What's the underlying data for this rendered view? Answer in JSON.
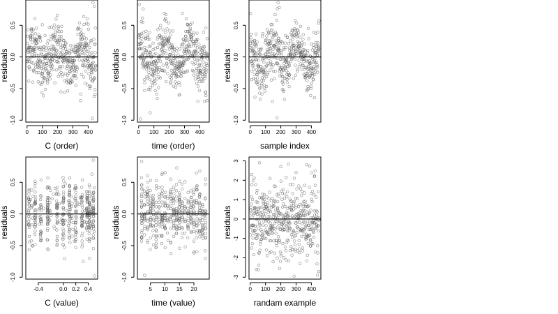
{
  "chart_data": [
    {
      "type": "scatter",
      "xlabel": "C (order)",
      "ylabel": "residuals",
      "xlim": [
        -8,
        462
      ],
      "ylim": [
        -1.03,
        0.9
      ],
      "xticks": [
        0,
        100,
        200,
        300,
        400
      ],
      "xtick_labels": [
        "0",
        "100",
        "200",
        "300",
        "400"
      ],
      "yticks": [
        -1.0,
        -0.5,
        0.0,
        0.5
      ],
      "ytick_labels": [
        "-1.0",
        "-0.5",
        "0.0",
        "0.5"
      ],
      "hline": 0,
      "grid": false,
      "n_points": 450,
      "x_range": [
        1,
        450
      ],
      "y_sample": [
        [
          8,
          0.43
        ],
        [
          25,
          0.31
        ],
        [
          48,
          0.05
        ],
        [
          60,
          0.22
        ],
        [
          85,
          0.12
        ],
        [
          100,
          0.51
        ],
        [
          118,
          0.34
        ],
        [
          135,
          -0.26
        ],
        [
          160,
          -0.18
        ],
        [
          182,
          -0.41
        ],
        [
          205,
          -0.31
        ],
        [
          222,
          -0.55
        ],
        [
          240,
          0.26
        ],
        [
          262,
          -0.15
        ],
        [
          285,
          0.18
        ],
        [
          305,
          -0.29
        ],
        [
          330,
          0.44
        ],
        [
          350,
          -0.69
        ],
        [
          380,
          0.15
        ],
        [
          400,
          0.52
        ],
        [
          418,
          0.26
        ],
        [
          428,
          -0.97
        ],
        [
          432,
          0.86
        ],
        [
          440,
          0.8
        ],
        [
          445,
          -0.59
        ]
      ]
    },
    {
      "type": "scatter",
      "xlabel": "time (order)",
      "ylabel": "residuals",
      "xlim": [
        -8,
        462
      ],
      "ylim": [
        -1.03,
        0.9
      ],
      "xticks": [
        0,
        100,
        200,
        300,
        400
      ],
      "xtick_labels": [
        "0",
        "100",
        "200",
        "300",
        "400"
      ],
      "yticks": [
        -1.0,
        -0.5,
        0.0,
        0.5
      ],
      "ytick_labels": [
        "-1.0",
        "-0.5",
        "0.0",
        "0.5"
      ],
      "hline": 0,
      "grid": false,
      "n_points": 450,
      "x_range": [
        1,
        450
      ],
      "y_sample": [
        [
          5,
          0.83
        ],
        [
          30,
          0.76
        ],
        [
          12,
          -0.98
        ],
        [
          40,
          -0.41
        ],
        [
          60,
          0.31
        ],
        [
          75,
          -0.52
        ],
        [
          95,
          0.22
        ],
        [
          120,
          -0.35
        ],
        [
          140,
          0.46
        ],
        [
          160,
          -0.13
        ],
        [
          185,
          0.27
        ],
        [
          205,
          -0.32
        ],
        [
          225,
          0.41
        ],
        [
          250,
          0.14
        ],
        [
          270,
          -0.44
        ],
        [
          295,
          0.27
        ],
        [
          320,
          -0.22
        ],
        [
          345,
          0.36
        ],
        [
          370,
          -0.35
        ],
        [
          395,
          0.2
        ],
        [
          415,
          -0.39
        ],
        [
          430,
          -0.7
        ],
        [
          440,
          0.46
        ],
        [
          448,
          -0.69
        ]
      ]
    },
    {
      "type": "scatter",
      "xlabel": "sample index",
      "ylabel": "residuals",
      "xlim": [
        -8,
        462
      ],
      "ylim": [
        -1.03,
        0.9
      ],
      "xticks": [
        0,
        100,
        200,
        300,
        400
      ],
      "xtick_labels": [
        "0",
        "100",
        "200",
        "300",
        "400"
      ],
      "yticks": [
        -1.0,
        -0.5,
        0.0,
        0.5
      ],
      "ytick_labels": [
        "-1.0",
        "-0.5",
        "0.0",
        "0.5"
      ],
      "hline": 0,
      "grid": false,
      "n_points": 450,
      "x_range": [
        1,
        450
      ],
      "y_sample": [
        [
          10,
          -0.36
        ],
        [
          30,
          0.19
        ],
        [
          55,
          0.07
        ],
        [
          80,
          0.33
        ],
        [
          110,
          0.43
        ],
        [
          130,
          -0.21
        ],
        [
          150,
          0.12
        ],
        [
          175,
          -0.96
        ],
        [
          182,
          0.86
        ],
        [
          190,
          0.78
        ],
        [
          210,
          -0.31
        ],
        [
          230,
          0.22
        ],
        [
          255,
          -0.47
        ],
        [
          275,
          0.34
        ],
        [
          300,
          0.09
        ],
        [
          320,
          -0.15
        ],
        [
          345,
          0.28
        ],
        [
          360,
          -0.33
        ],
        [
          380,
          0.45
        ],
        [
          395,
          -0.61
        ],
        [
          415,
          0.39
        ],
        [
          430,
          -0.22
        ],
        [
          445,
          0.1
        ]
      ]
    },
    {
      "type": "scatter",
      "xlabel": "C (value)",
      "ylabel": "residuals",
      "xlim": [
        -0.6,
        0.55
      ],
      "ylim": [
        -1.03,
        0.9
      ],
      "xticks": [
        -0.4,
        0.0,
        0.2,
        0.4
      ],
      "xtick_labels": [
        "-0.4",
        "0.0",
        "0.2",
        "0.4"
      ],
      "yticks": [
        -1.0,
        -0.5,
        0.0,
        0.5
      ],
      "ytick_labels": [
        "-1.0",
        "-0.5",
        "0.0",
        "0.5"
      ],
      "hline": 0,
      "grid": false,
      "n_points": 450,
      "x_concentrations": [
        -0.55,
        -0.45,
        -0.36,
        -0.25,
        -0.1,
        0.0,
        0.1,
        0.2,
        0.3,
        0.38,
        0.42,
        0.48
      ],
      "y_sample": [
        [
          -0.55,
          0.32
        ],
        [
          -0.45,
          0.48
        ],
        [
          -0.45,
          -0.27
        ],
        [
          -0.36,
          0.13
        ],
        [
          -0.25,
          0.22
        ],
        [
          -0.1,
          -0.41
        ],
        [
          0.0,
          0.18
        ],
        [
          0.1,
          -0.25
        ],
        [
          0.2,
          0.34
        ],
        [
          0.3,
          -0.52
        ],
        [
          0.38,
          -0.4
        ],
        [
          0.42,
          -0.7
        ],
        [
          0.48,
          0.85
        ],
        [
          0.5,
          -0.98
        ],
        [
          0.46,
          0.63
        ]
      ]
    },
    {
      "type": "scatter",
      "xlabel": "time (value)",
      "ylabel": "residuals",
      "xlim": [
        0.5,
        25.3
      ],
      "ylim": [
        -1.03,
        0.9
      ],
      "xticks": [
        5,
        10,
        15,
        20
      ],
      "xtick_labels": [
        "5",
        "10",
        "15",
        "20"
      ],
      "yticks": [
        -1.0,
        -0.5,
        0.0,
        0.5
      ],
      "ytick_labels": [
        "-1.0",
        "-0.5",
        "0.0",
        "0.5"
      ],
      "hline": 0,
      "grid": false,
      "n_points": 450,
      "x_levels": [
        2,
        3,
        4,
        5,
        6,
        7,
        8,
        9,
        10,
        11,
        12,
        13,
        14,
        15,
        16,
        17,
        18,
        19,
        20,
        21,
        22,
        23,
        24
      ],
      "y_sample": [
        [
          2,
          0.83
        ],
        [
          3,
          -0.97
        ],
        [
          4,
          0.27
        ],
        [
          5,
          -0.38
        ],
        [
          6,
          0.23
        ],
        [
          7,
          -0.52
        ],
        [
          8,
          0.31
        ],
        [
          10,
          -0.22
        ],
        [
          12,
          0.55
        ],
        [
          12,
          -0.46
        ],
        [
          14,
          0.27
        ],
        [
          16,
          -0.23
        ],
        [
          18,
          0.34
        ],
        [
          20,
          -0.43
        ],
        [
          22,
          0.16
        ],
        [
          24,
          -0.7
        ],
        [
          24,
          0.47
        ],
        [
          24,
          0.55
        ]
      ]
    },
    {
      "type": "scatter",
      "xlabel": "randam example",
      "ylabel": "residuals",
      "xlim": [
        -8,
        462
      ],
      "ylim": [
        -3.1,
        3.2
      ],
      "xticks": [
        0,
        100,
        200,
        300,
        400
      ],
      "xtick_labels": [
        "0",
        "100",
        "200",
        "300",
        "400"
      ],
      "yticks": [
        -3,
        -2,
        -1,
        0,
        1,
        2,
        3
      ],
      "ytick_labels": [
        "-3",
        "-2",
        "-1",
        "0",
        "1",
        "2",
        "3"
      ],
      "hline": 0,
      "grid": false,
      "n_points": 450,
      "x_range": [
        1,
        450
      ],
      "y_sample": [
        [
          10,
          2.3
        ],
        [
          40,
          -2.6
        ],
        [
          60,
          2.9
        ],
        [
          85,
          1.1
        ],
        [
          105,
          -1.6
        ],
        [
          130,
          2.1
        ],
        [
          150,
          -2.2
        ],
        [
          180,
          0.6
        ],
        [
          200,
          2.7
        ],
        [
          220,
          -2.0
        ],
        [
          245,
          1.4
        ],
        [
          270,
          -0.8
        ],
        [
          300,
          2.4
        ],
        [
          325,
          -2.3
        ],
        [
          350,
          0.9
        ],
        [
          370,
          2.8
        ],
        [
          395,
          -1.4
        ],
        [
          420,
          2.2
        ],
        [
          440,
          -2.9
        ]
      ]
    }
  ]
}
